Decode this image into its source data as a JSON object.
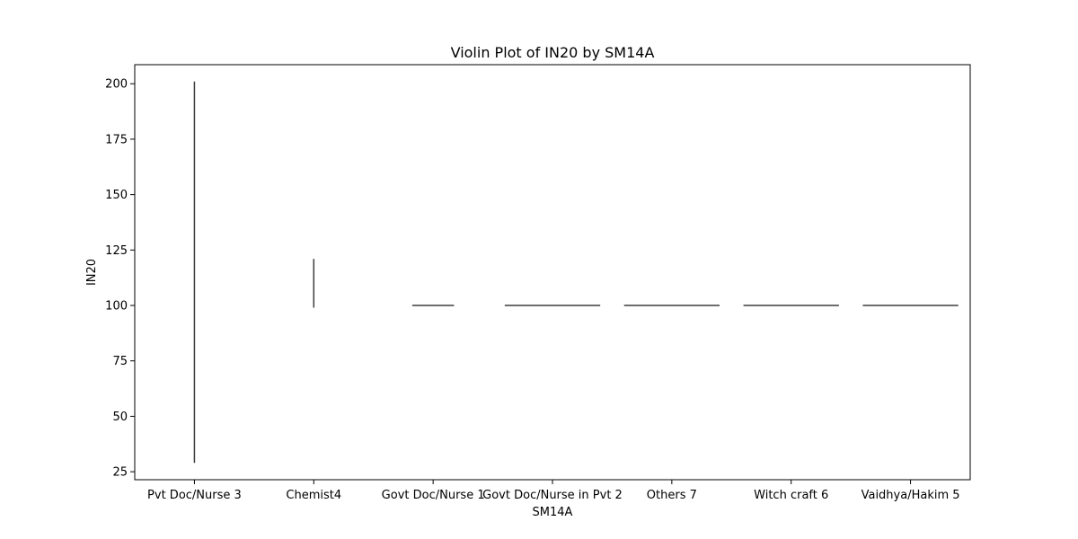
{
  "chart_data": {
    "type": "violin",
    "title": "Violin Plot of IN20 by SM14A",
    "xlabel": "SM14A",
    "ylabel": "IN20",
    "categories": [
      "Pvt Doc/Nurse 3",
      "Chemist4",
      "Govt Doc/Nurse 1",
      "Govt Doc/Nurse in Pvt 2",
      "Others 7",
      "Witch craft 6",
      "Vaidhya/Hakim 5"
    ],
    "violins": [
      {
        "category": "Pvt Doc/Nurse 3",
        "min": 29,
        "max": 201,
        "shape": "line"
      },
      {
        "category": "Chemist4",
        "min": 99,
        "max": 121,
        "shape": "line"
      },
      {
        "category": "Govt Doc/Nurse 1",
        "value": 100,
        "half_width": 0.35,
        "shape": "flat"
      },
      {
        "category": "Govt Doc/Nurse in Pvt 2",
        "value": 100,
        "half_width": 0.8,
        "shape": "flat"
      },
      {
        "category": "Others 7",
        "value": 100,
        "half_width": 0.8,
        "shape": "flat"
      },
      {
        "category": "Witch craft 6",
        "value": 100,
        "half_width": 0.8,
        "shape": "flat"
      },
      {
        "category": "Vaidhya/Hakim 5",
        "value": 100,
        "half_width": 0.8,
        "shape": "flat"
      }
    ],
    "yticks": [
      25,
      50,
      75,
      100,
      125,
      150,
      175,
      200
    ],
    "ylim": [
      21.4,
      208.6
    ],
    "grid": false,
    "colors": {
      "line": "#3d3d3d",
      "axis": "#000000"
    }
  }
}
